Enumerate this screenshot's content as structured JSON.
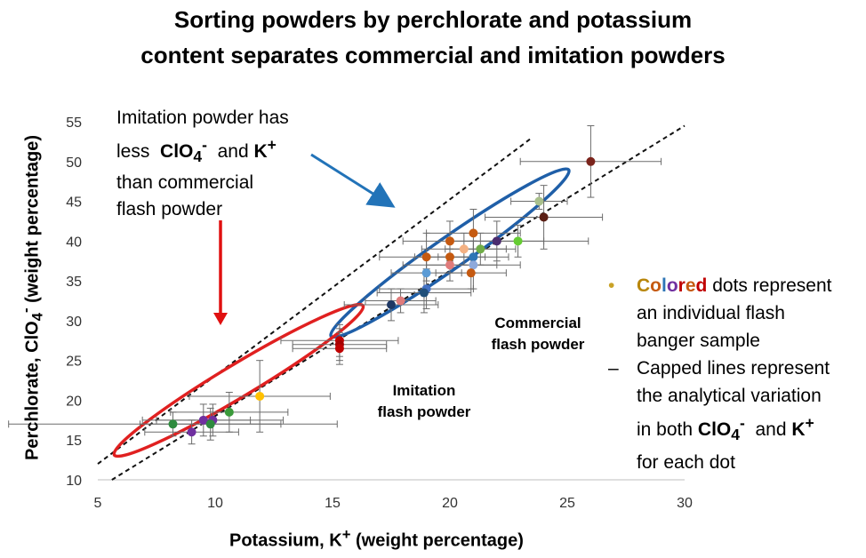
{
  "title_line1": "Sorting powders by perchlorate and potassium",
  "title_line2": "content separates commercial and imitation powders",
  "annotation": {
    "line1": "Imitation powder has",
    "line2a": "less",
    "clo4": "ClO",
    "clo4_sub": "4",
    "clo4_sup": "-",
    "and": "and",
    "k": "K",
    "k_sup": "+",
    "line3": "than commercial",
    "line4": "flash powder"
  },
  "commercial_label": [
    "Commercial",
    "flash powder"
  ],
  "imitation_label": [
    "Imitation",
    "flash powder"
  ],
  "legend": {
    "dot_bullet": "•",
    "colored_letters": [
      "C",
      "o",
      "l",
      "o",
      "r",
      "e",
      "d"
    ],
    "colored_colors": [
      "#b8860b",
      "#c55a11",
      "#2e75b6",
      "#7030a0",
      "#c00000",
      "#c55a11",
      "#c00000"
    ],
    "item1_rest": " dots represent",
    "item1_line2": "an individual flash",
    "item1_line3": "banger sample",
    "dash_bullet": "–",
    "item2_line1": "Capped lines represent",
    "item2_line2": "the analytical variation",
    "item2_line3a": "in both",
    "clo4": "ClO",
    "clo4_sub": "4",
    "clo4_sup": "-",
    "and": "and",
    "k": "K",
    "k_sup": "+",
    "item2_line4": "for each dot"
  },
  "axis_labels": {
    "y_text": "Perchlorate, ClO",
    "y_sub": "4",
    "y_sup": "-",
    "y_unit": " (weight percentage)",
    "x_text": "Potassium, K",
    "x_sup": "+",
    "x_unit": " (weight percentage)"
  },
  "colors": {
    "commercial_ellipse": "#1f5fa8",
    "imitation_ellipse": "#e02020",
    "commercial_arrow": "#2273b8",
    "imitation_arrow": "#e01010",
    "commercial_text": "#1f5fa8",
    "imitation_text": "#e02020"
  },
  "chart_data": {
    "type": "scatter",
    "title": "Sorting powders by perchlorate and potassium content separates commercial and imitation powders",
    "xlabel": "Potassium, K+ (weight percentage)",
    "ylabel": "Perchlorate, ClO4- (weight percentage)",
    "xlim": [
      5,
      30
    ],
    "ylim": [
      10,
      55
    ],
    "xticks": [
      5,
      10,
      15,
      20,
      25,
      30
    ],
    "yticks": [
      10,
      15,
      20,
      25,
      30,
      35,
      40,
      45,
      50,
      55
    ],
    "grid": false,
    "trend_lines": [
      {
        "name": "upper dashed",
        "points": [
          [
            5,
            12
          ],
          [
            23.5,
            53
          ]
        ]
      },
      {
        "name": "lower dashed",
        "points": [
          [
            5.6,
            10
          ],
          [
            30,
            54.5
          ]
        ]
      }
    ],
    "regions": [
      {
        "name": "Commercial flash powder",
        "center": [
          20,
          38.5
        ],
        "semi_major_along_line": "approx",
        "rx_data": 6.0,
        "ry_data": 3.2,
        "angle_deg": -35
      },
      {
        "name": "Imitation flash powder",
        "center": [
          11,
          22.5
        ],
        "rx_data": 6.0,
        "ry_data": 3.3,
        "angle_deg": -31
      }
    ],
    "points": [
      {
        "x": 26.0,
        "y": 50.0,
        "xerr": 3.0,
        "yerr": 4.5,
        "color": "#7b241c"
      },
      {
        "x": 23.8,
        "y": 45.0,
        "xerr": 1.2,
        "yerr": 1.0,
        "color": "#a9c08c"
      },
      {
        "x": 24.0,
        "y": 43.0,
        "xerr": 2.5,
        "yerr": 4.0,
        "color": "#5b1f15"
      },
      {
        "x": 22.0,
        "y": 40.0,
        "xerr": 2.0,
        "yerr": 2.5,
        "color": "#4b2c6f"
      },
      {
        "x": 22.9,
        "y": 40.0,
        "xerr": 3.0,
        "yerr": 2.0,
        "color": "#66cc33"
      },
      {
        "x": 21.3,
        "y": 39.0,
        "xerr": 1.5,
        "yerr": 2.0,
        "color": "#70ad47"
      },
      {
        "x": 20.6,
        "y": 39.0,
        "xerr": 1.8,
        "yerr": 2.0,
        "color": "#f4b183"
      },
      {
        "x": 21.0,
        "y": 41.0,
        "xerr": 2.0,
        "yerr": 3.0,
        "color": "#c55a11"
      },
      {
        "x": 20.0,
        "y": 40.0,
        "xerr": 2.0,
        "yerr": 2.5,
        "color": "#c55a11"
      },
      {
        "x": 19.0,
        "y": 38.0,
        "xerr": 2.0,
        "yerr": 3.0,
        "color": "#c55a11"
      },
      {
        "x": 21.0,
        "y": 38.0,
        "xerr": 1.5,
        "yerr": 2.0,
        "color": "#2e75b6"
      },
      {
        "x": 20.0,
        "y": 38.0,
        "xerr": 1.5,
        "yerr": 2.0,
        "color": "#c55a11"
      },
      {
        "x": 20.0,
        "y": 37.0,
        "xerr": 2.0,
        "yerr": 2.0,
        "color": "#e07b7b"
      },
      {
        "x": 21.0,
        "y": 37.0,
        "xerr": 2.0,
        "yerr": 3.0,
        "color": "#8ea9db"
      },
      {
        "x": 20.9,
        "y": 36.0,
        "xerr": 1.5,
        "yerr": 2.0,
        "color": "#c55a11"
      },
      {
        "x": 19.0,
        "y": 36.0,
        "xerr": 1.5,
        "yerr": 2.0,
        "color": "#5b9bd5"
      },
      {
        "x": 19.0,
        "y": 34.0,
        "xerr": 2.0,
        "yerr": 2.5,
        "color": "#4472c4"
      },
      {
        "x": 18.9,
        "y": 33.5,
        "xerr": 2.0,
        "yerr": 2.5,
        "color": "#1f4e79"
      },
      {
        "x": 17.9,
        "y": 32.5,
        "xerr": 1.5,
        "yerr": 1.5,
        "color": "#e07b7b"
      },
      {
        "x": 17.5,
        "y": 32.0,
        "xerr": 2.0,
        "yerr": 2.0,
        "color": "#1f3864"
      },
      {
        "x": 15.3,
        "y": 27.5,
        "xerr": 2.5,
        "yerr": 2.0,
        "color": "#c00000"
      },
      {
        "x": 15.3,
        "y": 27.0,
        "xerr": 2.0,
        "yerr": 2.0,
        "color": "#a50000"
      },
      {
        "x": 15.3,
        "y": 26.5,
        "xerr": 2.0,
        "yerr": 2.0,
        "color": "#c00000"
      },
      {
        "x": 11.9,
        "y": 20.5,
        "xerr": 3.0,
        "yerr": 4.5,
        "color": "#ffc000"
      },
      {
        "x": 10.6,
        "y": 18.5,
        "xerr": 2.5,
        "yerr": 2.5,
        "color": "#3a9a3a"
      },
      {
        "x": 9.9,
        "y": 17.5,
        "xerr": 3.0,
        "yerr": 2.0,
        "color": "#7030a0"
      },
      {
        "x": 9.5,
        "y": 17.5,
        "xerr": 2.0,
        "yerr": 2.0,
        "color": "#7030a0"
      },
      {
        "x": 9.8,
        "y": 17.0,
        "xerr": 3.0,
        "yerr": 2.0,
        "color": "#2e8b3e"
      },
      {
        "x": 8.2,
        "y": 17.0,
        "xerr": 7.0,
        "yerr": 1.5,
        "color": "#2e8b3e"
      },
      {
        "x": 9.0,
        "y": 16.0,
        "xerr": 2.0,
        "yerr": 1.5,
        "color": "#7030a0"
      }
    ]
  }
}
